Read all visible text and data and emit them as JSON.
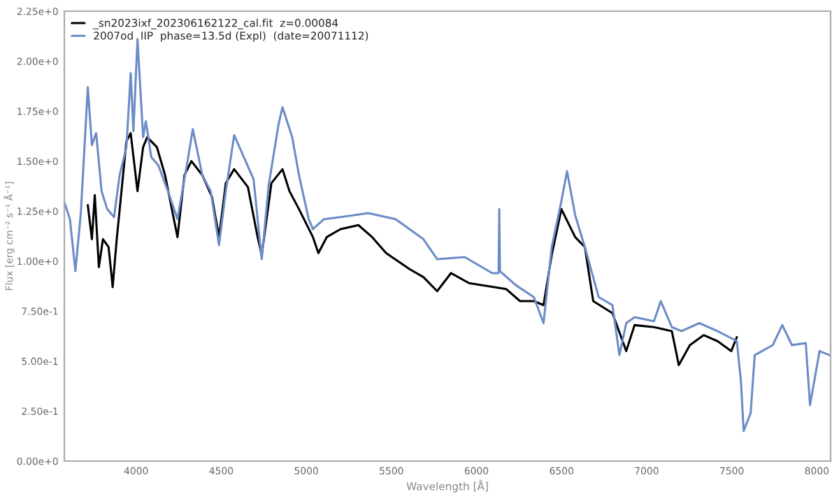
{
  "chart_data": {
    "type": "line",
    "xlabel": "Wavelength [Å]",
    "ylabel": "Flux [erg cm⁻² s⁻¹ Å⁻¹]",
    "xlim": [
      3578,
      8081
    ],
    "ylim": [
      0,
      2.25
    ],
    "xticks": [
      4000,
      4500,
      5000,
      5500,
      6000,
      6500,
      7000,
      7500,
      8000
    ],
    "yticks": [
      {
        "value": 0,
        "label": "0.00e+0"
      },
      {
        "value": 0.25,
        "label": "2.50e-1"
      },
      {
        "value": 0.5,
        "label": "5.00e-1"
      },
      {
        "value": 0.75,
        "label": "7.50e-1"
      },
      {
        "value": 1.0,
        "label": "1.00e+0"
      },
      {
        "value": 1.25,
        "label": "1.25e+0"
      },
      {
        "value": 1.5,
        "label": "1.50e+0"
      },
      {
        "value": 1.75,
        "label": "1.75e+0"
      },
      {
        "value": 2.0,
        "label": "2.00e+0"
      },
      {
        "value": 2.25,
        "label": "2.25e+0"
      }
    ],
    "grid": false,
    "legend": "top left",
    "marker": "none",
    "line_style": "solid",
    "series": [
      {
        "name": "_sn2023ixf_202306162122_cal.fit  z=0.00084",
        "color": "#000000",
        "x": [
          3716,
          3740,
          3757,
          3781,
          3805,
          3838,
          3854,
          3862,
          3886,
          3943,
          3968,
          4008,
          4041,
          4065,
          4122,
          4170,
          4243,
          4284,
          4325,
          4389,
          4446,
          4487,
          4527,
          4576,
          4657,
          4714,
          4738,
          4795,
          4860,
          4901,
          4957,
          5039,
          5071,
          5120,
          5201,
          5306,
          5387,
          5469,
          5607,
          5688,
          5769,
          5850,
          5956,
          6175,
          6256,
          6337,
          6394,
          6442,
          6499,
          6580,
          6637,
          6686,
          6799,
          6880,
          6929,
          7043,
          7148,
          7189,
          7254,
          7335,
          7416,
          7497,
          7530
        ],
        "values": [
          1.28,
          1.11,
          1.33,
          0.97,
          1.11,
          1.07,
          0.94,
          0.87,
          1.11,
          1.6,
          1.64,
          1.35,
          1.57,
          1.62,
          1.57,
          1.43,
          1.12,
          1.43,
          1.5,
          1.43,
          1.32,
          1.12,
          1.39,
          1.46,
          1.37,
          1.12,
          1.03,
          1.39,
          1.46,
          1.35,
          1.26,
          1.12,
          1.04,
          1.12,
          1.16,
          1.18,
          1.12,
          1.04,
          0.96,
          0.92,
          0.85,
          0.94,
          0.89,
          0.86,
          0.8,
          0.8,
          0.78,
          1.03,
          1.26,
          1.12,
          1.07,
          0.8,
          0.74,
          0.55,
          0.68,
          0.67,
          0.65,
          0.48,
          0.58,
          0.63,
          0.6,
          0.55,
          0.62
        ]
      },
      {
        "name": "2007od  IIP  phase=13.5d (Expl)  (date=20071112)",
        "color": "#6b8cc7",
        "x": [
          3580,
          3611,
          3643,
          3675,
          3716,
          3740,
          3765,
          3797,
          3830,
          3870,
          3903,
          3943,
          3968,
          3984,
          4008,
          4041,
          4057,
          4089,
          4130,
          4187,
          4243,
          4308,
          4333,
          4389,
          4438,
          4487,
          4527,
          4576,
          4633,
          4690,
          4738,
          4779,
          4836,
          4860,
          4917,
          4957,
          5014,
          5039,
          5104,
          5201,
          5363,
          5525,
          5688,
          5769,
          5931,
          6093,
          6130,
          6134,
          6138,
          6231,
          6337,
          6394,
          6442,
          6499,
          6532,
          6580,
          6637,
          6718,
          6799,
          6840,
          6880,
          6929,
          7043,
          7083,
          7148,
          7205,
          7310,
          7416,
          7530,
          7554,
          7570,
          7611,
          7635,
          7741,
          7797,
          7854,
          7935,
          7960,
          8016,
          8075
        ],
        "values": [
          1.29,
          1.21,
          0.95,
          1.24,
          1.87,
          1.58,
          1.64,
          1.35,
          1.26,
          1.22,
          1.43,
          1.57,
          1.94,
          1.65,
          2.11,
          1.62,
          1.7,
          1.52,
          1.48,
          1.35,
          1.21,
          1.53,
          1.66,
          1.43,
          1.35,
          1.08,
          1.35,
          1.63,
          1.52,
          1.41,
          1.01,
          1.38,
          1.68,
          1.77,
          1.62,
          1.43,
          1.21,
          1.16,
          1.21,
          1.22,
          1.24,
          1.21,
          1.11,
          1.01,
          1.02,
          0.94,
          0.94,
          1.26,
          0.95,
          0.88,
          0.82,
          0.69,
          1.07,
          1.3,
          1.45,
          1.23,
          1.07,
          0.82,
          0.78,
          0.53,
          0.69,
          0.72,
          0.7,
          0.8,
          0.67,
          0.65,
          0.69,
          0.65,
          0.6,
          0.4,
          0.15,
          0.24,
          0.53,
          0.58,
          0.68,
          0.58,
          0.59,
          0.28,
          0.55,
          0.53
        ]
      }
    ]
  }
}
